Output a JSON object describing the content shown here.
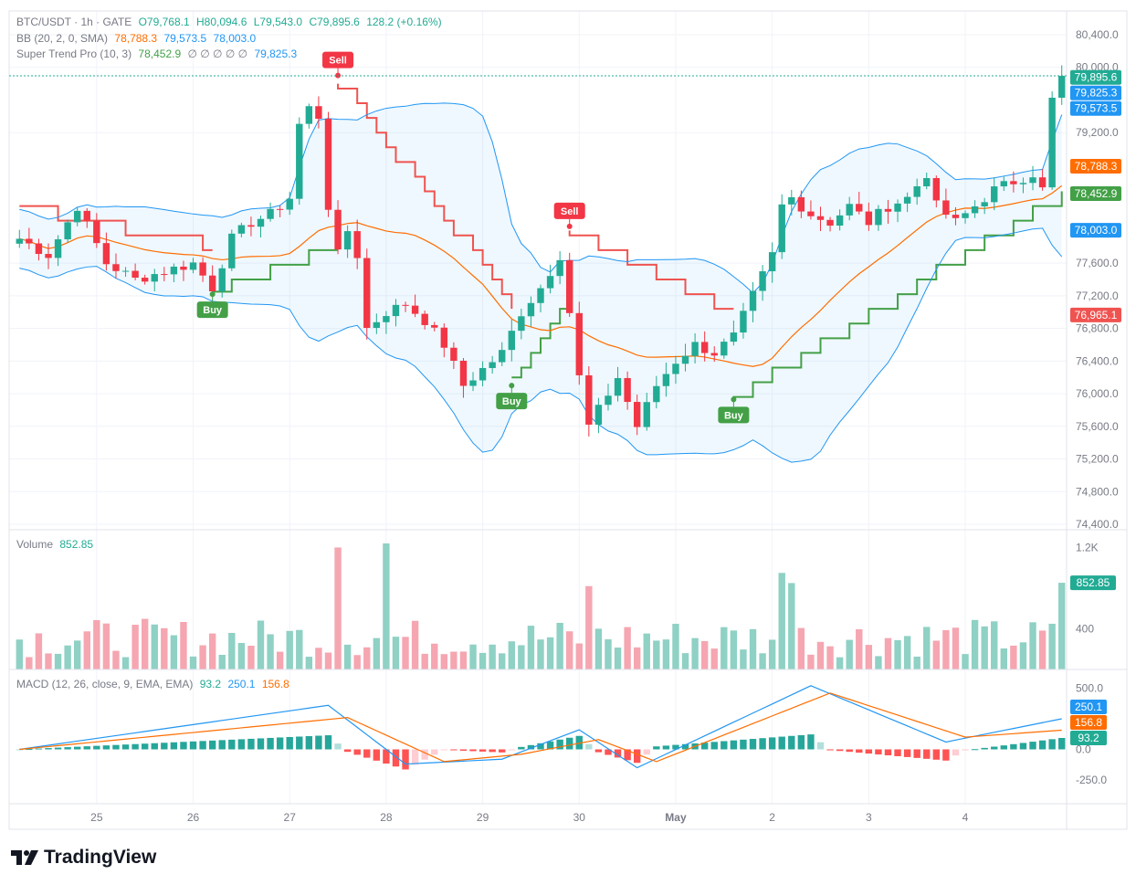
{
  "legend": {
    "symbol": "BTC/USDT · 1h · GATE",
    "open": "O79,768.1",
    "high": "H80,094.6",
    "low": "L79,543.0",
    "close": "C79,895.6",
    "change": "128.2 (+0.16%)",
    "bb_label": "BB (20, 2, 0, SMA)",
    "bb_basis": "78,788.3",
    "bb_upper": "79,573.5",
    "bb_lower": "78,003.0",
    "st_label": "Super Trend Pro (10, 3)",
    "st_value": "78,452.9",
    "st_empty": "∅ ∅ ∅ ∅ ∅",
    "st_value2": "79,825.3",
    "volume_label": "Volume",
    "volume_value": "852.85",
    "macd_label": "MACD (12, 26, close, 9, EMA, EMA)",
    "macd_hist": "93.2",
    "macd_line": "250.1",
    "macd_signal": "156.8"
  },
  "brand": {
    "name": "TradingView"
  },
  "colors": {
    "up": "#22ab94",
    "down": "#f23645",
    "up_vol": "#8fd1c4",
    "down_vol": "#f5a6b1",
    "bb_band": "#2196f3",
    "bb_basis": "#ff6d00",
    "st_up": "#43a047",
    "st_down": "#ef5350",
    "macd": "#2196f3",
    "signal": "#ff6d00"
  },
  "chart_data": [
    {
      "type": "candlestick",
      "title": "BTC/USDT · 1h · GATE",
      "x_labels": [
        "25",
        "26",
        "27",
        "28",
        "29",
        "30",
        "May",
        "2",
        "3",
        "4"
      ],
      "y_ticks": [
        "80,400.0",
        "80,000.0",
        "79,200.0",
        "77,600.0",
        "77,200.0",
        "76,800.0",
        "76,400.0",
        "76,000.0",
        "75,600.0",
        "75,200.0",
        "74,800.0",
        "74,400.0"
      ],
      "ylim": [
        74400,
        80500
      ],
      "price_badges": [
        {
          "text": "79,895.6",
          "value": 79895.6,
          "color": "#22ab94"
        },
        {
          "text": "79,825.3",
          "value": 79825.3,
          "color": "#2196f3"
        },
        {
          "text": "79,573.5",
          "value": 79573.5,
          "color": "#2196f3"
        },
        {
          "text": "78,788.3",
          "value": 78788.3,
          "color": "#ff6d00"
        },
        {
          "text": "78,452.9",
          "value": 78452.9,
          "color": "#43a047"
        },
        {
          "text": "78,003.0",
          "value": 78003.0,
          "color": "#2196f3"
        },
        {
          "text": "76,965.1",
          "value": 76965.1,
          "color": "#ef5350"
        }
      ],
      "signals": [
        {
          "label": "Sell",
          "x": 33,
          "price": 79900,
          "side": "sell"
        },
        {
          "label": "Buy",
          "x": 20,
          "price": 77220,
          "side": "buy"
        },
        {
          "label": "Sell",
          "x": 57,
          "price": 78050,
          "side": "sell"
        },
        {
          "label": "Buy",
          "x": 51,
          "price": 76100,
          "side": "buy"
        },
        {
          "label": "Buy",
          "x": 74,
          "price": 75930,
          "side": "buy"
        }
      ],
      "close_series": [
        {
          "x": 0,
          "y": 77900
        },
        {
          "x": 3,
          "y": 77700
        },
        {
          "x": 6,
          "y": 78300
        },
        {
          "x": 9,
          "y": 77600
        },
        {
          "x": 12,
          "y": 77400
        },
        {
          "x": 15,
          "y": 77500
        },
        {
          "x": 18,
          "y": 77600
        },
        {
          "x": 20,
          "y": 77300
        },
        {
          "x": 22,
          "y": 77900
        },
        {
          "x": 24,
          "y": 78100
        },
        {
          "x": 26,
          "y": 78200
        },
        {
          "x": 28,
          "y": 78400
        },
        {
          "x": 29,
          "y": 79300
        },
        {
          "x": 30,
          "y": 79500
        },
        {
          "x": 31,
          "y": 79400
        },
        {
          "x": 32,
          "y": 78300
        },
        {
          "x": 33,
          "y": 77700
        },
        {
          "x": 34,
          "y": 78000
        },
        {
          "x": 35,
          "y": 77700
        },
        {
          "x": 36,
          "y": 76800
        },
        {
          "x": 37,
          "y": 76900
        },
        {
          "x": 38,
          "y": 77000
        },
        {
          "x": 40,
          "y": 77100
        },
        {
          "x": 42,
          "y": 76900
        },
        {
          "x": 44,
          "y": 76600
        },
        {
          "x": 46,
          "y": 76100
        },
        {
          "x": 48,
          "y": 76300
        },
        {
          "x": 50,
          "y": 76500
        },
        {
          "x": 52,
          "y": 77000
        },
        {
          "x": 54,
          "y": 77300
        },
        {
          "x": 56,
          "y": 77700
        },
        {
          "x": 57,
          "y": 77000
        },
        {
          "x": 58,
          "y": 76200
        },
        {
          "x": 59,
          "y": 75600
        },
        {
          "x": 60,
          "y": 75800
        },
        {
          "x": 62,
          "y": 76200
        },
        {
          "x": 64,
          "y": 75600
        },
        {
          "x": 66,
          "y": 76100
        },
        {
          "x": 68,
          "y": 76400
        },
        {
          "x": 70,
          "y": 76600
        },
        {
          "x": 72,
          "y": 76500
        },
        {
          "x": 74,
          "y": 76700
        },
        {
          "x": 76,
          "y": 77200
        },
        {
          "x": 78,
          "y": 77700
        },
        {
          "x": 79,
          "y": 78300
        },
        {
          "x": 80,
          "y": 78400
        },
        {
          "x": 82,
          "y": 78200
        },
        {
          "x": 84,
          "y": 78100
        },
        {
          "x": 86,
          "y": 78300
        },
        {
          "x": 88,
          "y": 78100
        },
        {
          "x": 90,
          "y": 78300
        },
        {
          "x": 92,
          "y": 78400
        },
        {
          "x": 94,
          "y": 78700
        },
        {
          "x": 95,
          "y": 78300
        },
        {
          "x": 97,
          "y": 78100
        },
        {
          "x": 99,
          "y": 78300
        },
        {
          "x": 101,
          "y": 78500
        },
        {
          "x": 103,
          "y": 78600
        },
        {
          "x": 105,
          "y": 78700
        },
        {
          "x": 106,
          "y": 78500
        },
        {
          "x": 107,
          "y": 79600
        },
        {
          "x": 108,
          "y": 79895.6
        }
      ]
    },
    {
      "type": "bar",
      "title": "Volume",
      "y_ticks": [
        "1.2K",
        "400"
      ],
      "last_value": 852.85,
      "values_sample": [
        {
          "x": 33,
          "y": 1200
        },
        {
          "x": 38,
          "y": 1240
        },
        {
          "x": 59,
          "y": 820
        },
        {
          "x": 79,
          "y": 950
        },
        {
          "x": 80,
          "y": 850
        },
        {
          "x": 108,
          "y": 852.85
        }
      ]
    },
    {
      "type": "line",
      "title": "MACD (12, 26, close, 9, EMA, EMA)",
      "y_ticks": [
        "500.0",
        "0.0",
        "-250.0"
      ],
      "series": [
        {
          "name": "MACD",
          "values": [
            {
              "x": 0,
              "y": 0
            },
            {
              "x": 32,
              "y": 360
            },
            {
              "x": 40,
              "y": -120
            },
            {
              "x": 50,
              "y": -80
            },
            {
              "x": 58,
              "y": 160
            },
            {
              "x": 64,
              "y": -150
            },
            {
              "x": 82,
              "y": 520
            },
            {
              "x": 96,
              "y": 60
            },
            {
              "x": 108,
              "y": 250.1
            }
          ]
        },
        {
          "name": "Signal",
          "values": [
            {
              "x": 0,
              "y": 0
            },
            {
              "x": 34,
              "y": 260
            },
            {
              "x": 44,
              "y": -100
            },
            {
              "x": 52,
              "y": -40
            },
            {
              "x": 60,
              "y": 80
            },
            {
              "x": 66,
              "y": -100
            },
            {
              "x": 84,
              "y": 460
            },
            {
              "x": 98,
              "y": 100
            },
            {
              "x": 108,
              "y": 156.8
            }
          ]
        }
      ],
      "histogram_last": 93.2
    }
  ]
}
